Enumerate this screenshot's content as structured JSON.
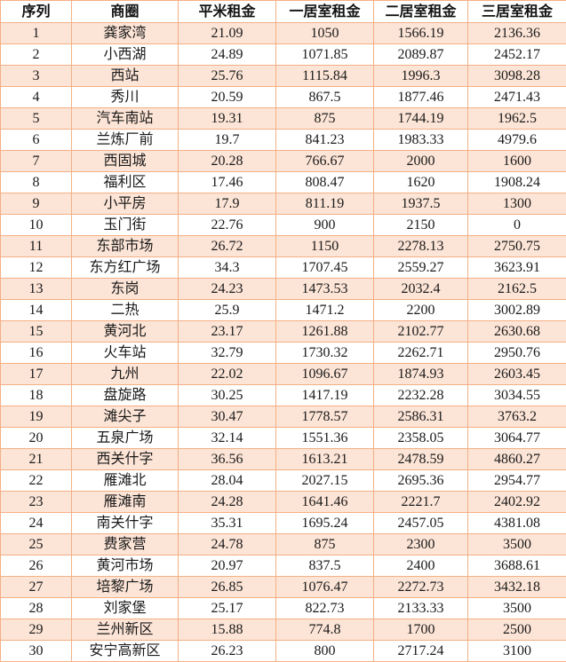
{
  "table": {
    "header": [
      "序列",
      "商圈",
      "平米租金",
      "一居室租金",
      "二居室租金",
      "三居室租金"
    ],
    "rows": [
      [
        "1",
        "龚家湾",
        "21.09",
        "1050",
        "1566.19",
        "2136.36"
      ],
      [
        "2",
        "小西湖",
        "24.89",
        "1071.85",
        "2089.87",
        "2452.17"
      ],
      [
        "3",
        "西站",
        "25.76",
        "1115.84",
        "1996.3",
        "3098.28"
      ],
      [
        "4",
        "秀川",
        "20.59",
        "867.5",
        "1877.46",
        "2471.43"
      ],
      [
        "5",
        "汽车南站",
        "19.31",
        "875",
        "1744.19",
        "1962.5"
      ],
      [
        "6",
        "兰炼厂前",
        "19.7",
        "841.23",
        "1983.33",
        "4979.6"
      ],
      [
        "7",
        "西固城",
        "20.28",
        "766.67",
        "2000",
        "1600"
      ],
      [
        "8",
        "福利区",
        "17.46",
        "808.47",
        "1620",
        "1908.24"
      ],
      [
        "9",
        "小平房",
        "17.9",
        "811.19",
        "1937.5",
        "1300"
      ],
      [
        "10",
        "玉门街",
        "22.76",
        "900",
        "2150",
        "0"
      ],
      [
        "11",
        "东部市场",
        "26.72",
        "1150",
        "2278.13",
        "2750.75"
      ],
      [
        "12",
        "东方红广场",
        "34.3",
        "1707.45",
        "2559.27",
        "3623.91"
      ],
      [
        "13",
        "东岗",
        "24.23",
        "1473.53",
        "2032.4",
        "2162.5"
      ],
      [
        "14",
        "二热",
        "25.9",
        "1471.2",
        "2200",
        "3002.89"
      ],
      [
        "15",
        "黄河北",
        "23.17",
        "1261.88",
        "2102.77",
        "2630.68"
      ],
      [
        "16",
        "火车站",
        "32.79",
        "1730.32",
        "2262.71",
        "2950.76"
      ],
      [
        "17",
        "九州",
        "22.02",
        "1096.67",
        "1874.93",
        "2603.45"
      ],
      [
        "18",
        "盘旋路",
        "30.25",
        "1417.19",
        "2232.28",
        "3034.55"
      ],
      [
        "19",
        "滩尖子",
        "30.47",
        "1778.57",
        "2586.31",
        "3763.2"
      ],
      [
        "20",
        "五泉广场",
        "32.14",
        "1551.36",
        "2358.05",
        "3064.77"
      ],
      [
        "21",
        "西关什字",
        "36.56",
        "1613.21",
        "2478.59",
        "4860.27"
      ],
      [
        "22",
        "雁滩北",
        "28.04",
        "2027.15",
        "2695.36",
        "2954.77"
      ],
      [
        "23",
        "雁滩南",
        "24.28",
        "1641.46",
        "2221.7",
        "2402.92"
      ],
      [
        "24",
        "南关什字",
        "35.31",
        "1695.24",
        "2457.05",
        "4381.08"
      ],
      [
        "25",
        "费家营",
        "24.78",
        "875",
        "2300",
        "3500"
      ],
      [
        "26",
        "黄河市场",
        "20.97",
        "837.5",
        "2400",
        "3688.61"
      ],
      [
        "27",
        "培黎广场",
        "26.85",
        "1076.47",
        "2272.73",
        "3432.18"
      ],
      [
        "28",
        "刘家堡",
        "25.17",
        "822.73",
        "2133.33",
        "3500"
      ],
      [
        "29",
        "兰州新区",
        "15.88",
        "774.8",
        "1700",
        "2500"
      ],
      [
        "30",
        "安宁高新区",
        "26.23",
        "800",
        "2717.24",
        "3100"
      ]
    ]
  }
}
